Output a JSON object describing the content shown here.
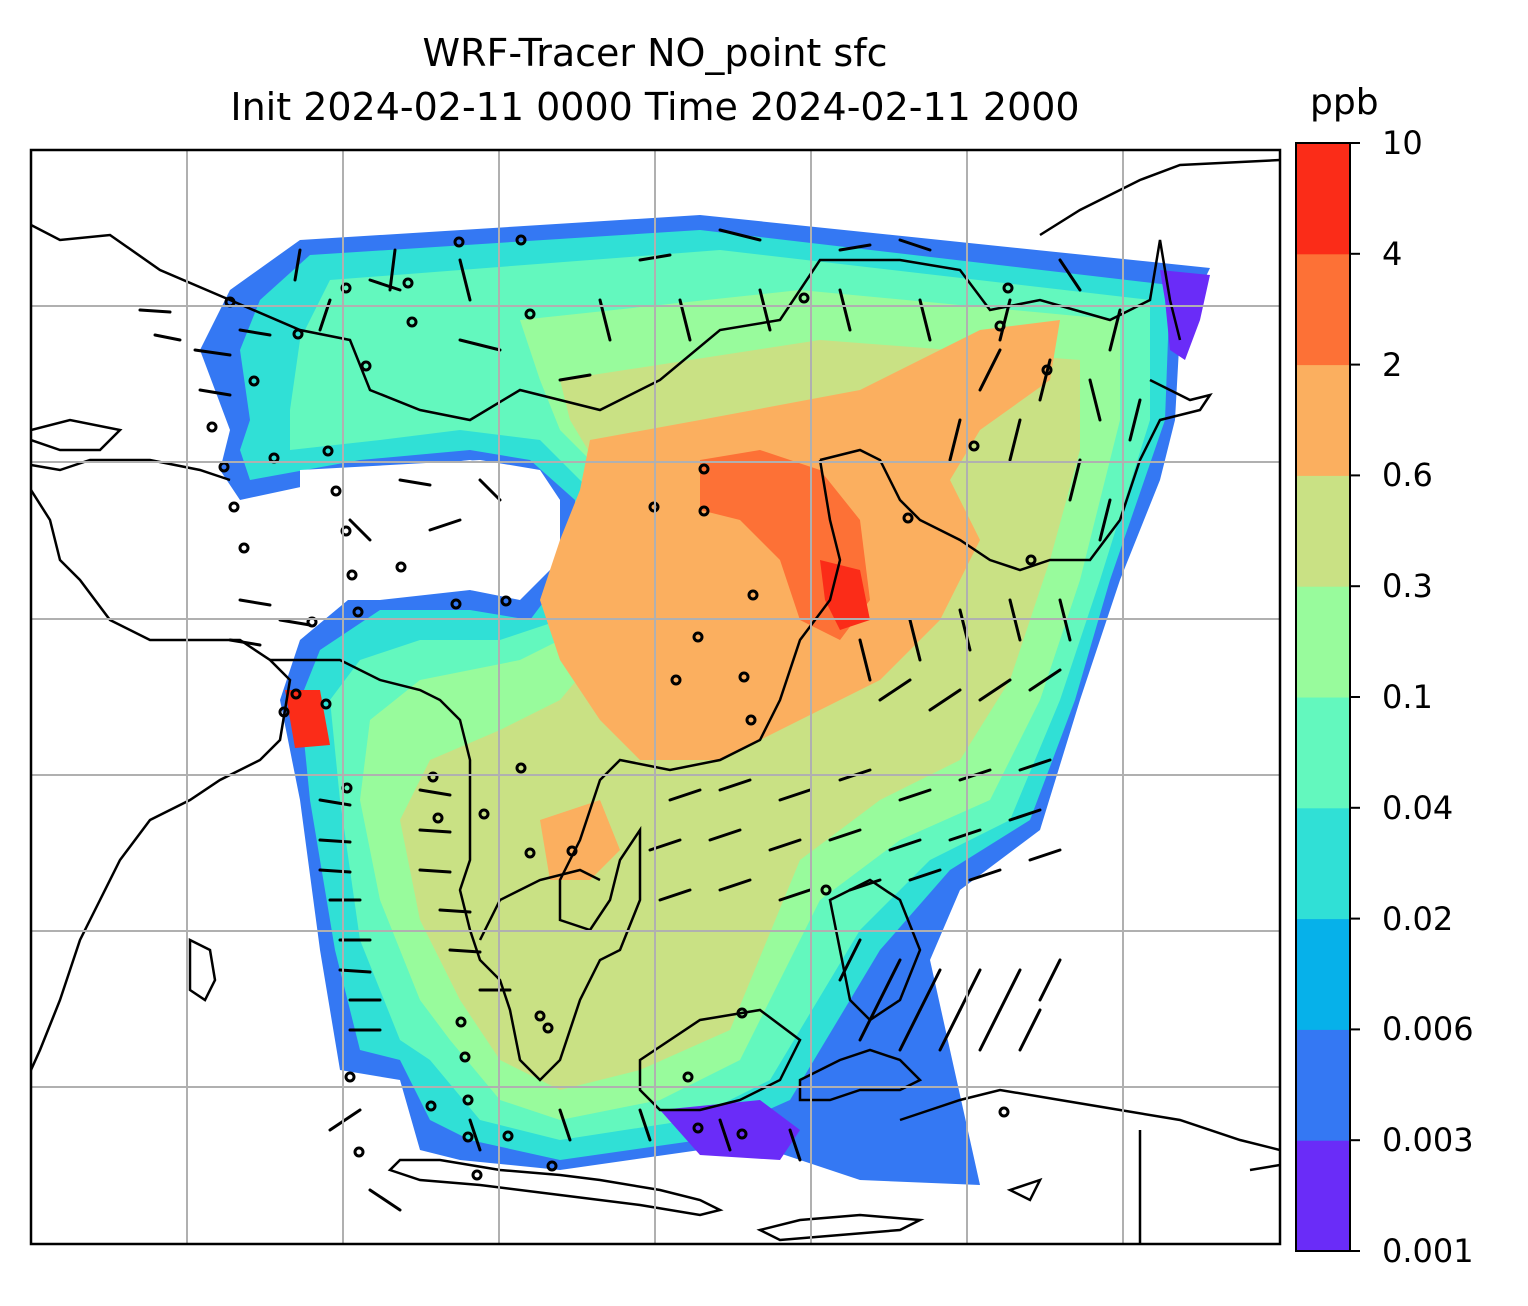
{
  "title": {
    "line1": "WRF-Tracer NO_point sfc",
    "line2": "Init 2024-02-11 0000 Time 2024-02-11 2000"
  },
  "colorbar": {
    "unit": "ppb",
    "levels": [
      "0.001",
      "0.003",
      "0.006",
      "0.02",
      "0.04",
      "0.1",
      "0.3",
      "0.6",
      "2",
      "4",
      "10"
    ],
    "colors": [
      "#6a2cf8",
      "#3478f3",
      "#06b1ea",
      "#30e0d6",
      "#63f8be",
      "#98fb9c",
      "#c9e184",
      "#fbaf5f",
      "#fd7136",
      "#fb2c18"
    ]
  },
  "map": {
    "gridlines": true,
    "features": [
      "coastlines",
      "country-borders",
      "wind-barbs",
      "station-markers"
    ]
  }
}
